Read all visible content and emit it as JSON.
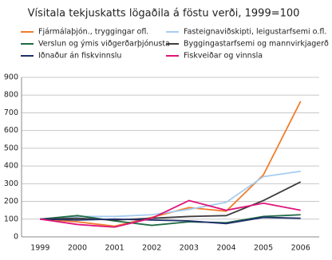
{
  "chart_data": {
    "type": "line",
    "title": "Vísitala tekjuskatts lögaðila á föstu verði, 1999=100",
    "categories": [
      "1999",
      "2000",
      "2001",
      "2002",
      "2003",
      "2004",
      "2005",
      "2006"
    ],
    "series": [
      {
        "name": "Fjármálaþjón., tryggingar ofl.",
        "color": "#f07c2a",
        "values": [
          100,
          85,
          60,
          110,
          165,
          145,
          350,
          765
        ]
      },
      {
        "name": "Fasteignaviðskipti, leigustarfsemi o.fl.",
        "color": "#a6cdf0",
        "values": [
          100,
          115,
          115,
          125,
          155,
          195,
          340,
          370
        ]
      },
      {
        "name": "Verslun og ýmis viðgerðarþjónusta",
        "color": "#1f6b45",
        "values": [
          100,
          120,
          90,
          65,
          85,
          80,
          115,
          125
        ]
      },
      {
        "name": "Byggingastarfsemi og mannvirkjagerð",
        "color": "#3c3c3c",
        "values": [
          100,
          105,
          95,
          105,
          115,
          120,
          205,
          310
        ]
      },
      {
        "name": "Iðnaður án fiskvinnslu",
        "color": "#1f2f6b",
        "values": [
          100,
          95,
          100,
          95,
          90,
          75,
          110,
          105
        ]
      },
      {
        "name": "Fiskveiðar og vinnsla",
        "color": "#e0157a",
        "values": [
          100,
          70,
          55,
          105,
          205,
          150,
          190,
          150
        ]
      }
    ],
    "ylim": [
      0,
      900
    ],
    "yticks": [
      0,
      100,
      200,
      300,
      400,
      500,
      600,
      700,
      800,
      900
    ],
    "grid": true
  }
}
